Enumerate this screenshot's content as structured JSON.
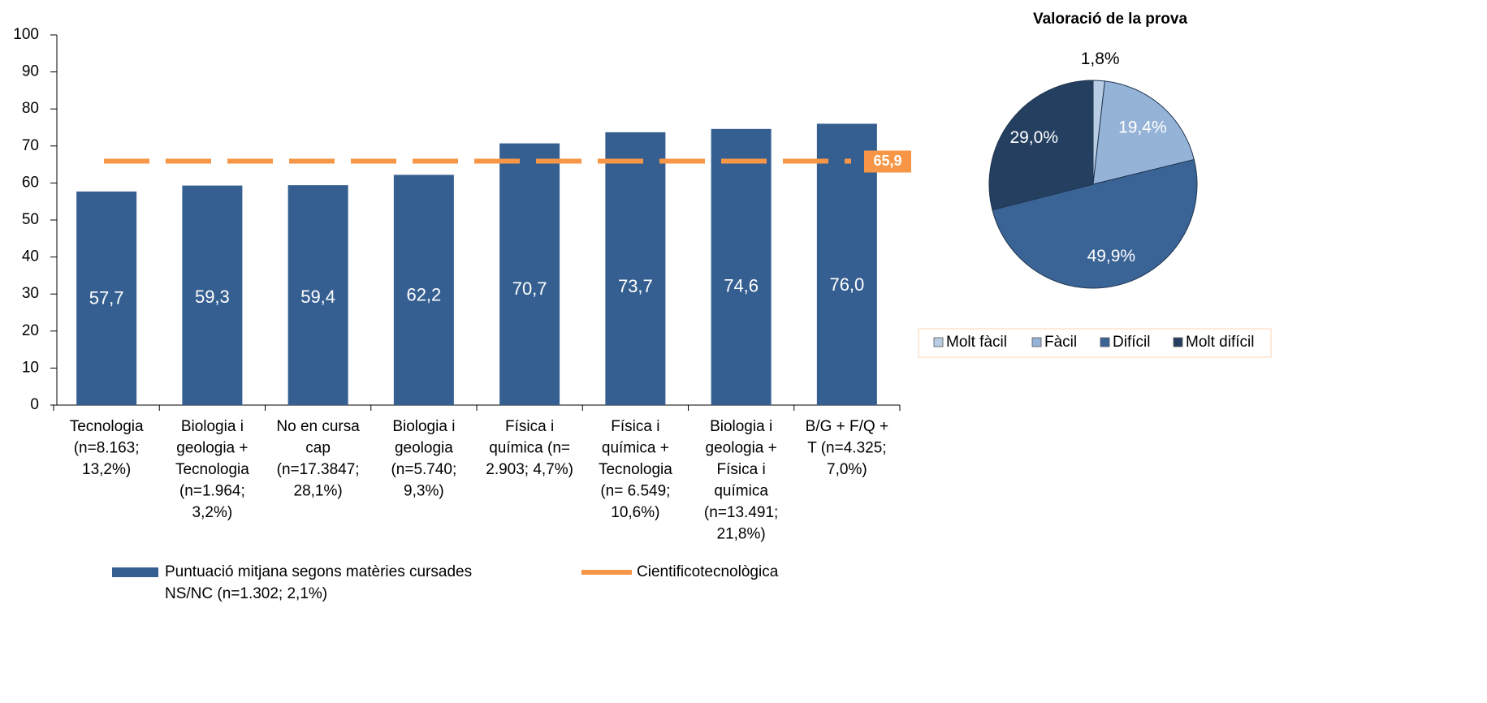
{
  "chart_data": [
    {
      "type": "bar",
      "categories": [
        [
          "Tecnologia",
          "(n=8.163;",
          "13,2%)"
        ],
        [
          "Biologia i",
          "geologia +",
          "Tecnologia",
          "(n=1.964;",
          "3,2%)"
        ],
        [
          "No en cursa",
          "cap",
          "(n=17.3847;",
          "28,1%)"
        ],
        [
          "Biologia i",
          "geologia",
          "(n=5.740;",
          "9,3%)"
        ],
        [
          "Física i",
          "química (n=",
          "2.903; 4,7%)"
        ],
        [
          "Física i",
          "química +",
          "Tecnologia",
          "(n= 6.549;",
          "10,6%)"
        ],
        [
          "Biologia i",
          "geologia +",
          "Física i",
          "química",
          "(n=13.491;",
          "21,8%)"
        ],
        [
          "B/G + F/Q +",
          "T (n=4.325;",
          "7,0%)"
        ]
      ],
      "series": [
        {
          "name": "Puntuació mitjana segons matèries cursades",
          "color": "#365f91",
          "values": [
            57.7,
            59.3,
            59.4,
            62.2,
            70.7,
            73.7,
            74.6,
            76.0
          ],
          "value_labels": [
            "57,7",
            "59,3",
            "59,4",
            "62,2",
            "70,7",
            "73,7",
            "74,6",
            "76,0"
          ]
        }
      ],
      "reference_line": {
        "name": "Cientificotecnològica",
        "value": 65.9,
        "value_label": "65,9",
        "color": "#f79646"
      },
      "legend_note": "NS/NC (n=1.302; 2,1%)",
      "ylim": [
        0,
        100
      ],
      "yticks": [
        0,
        10,
        20,
        30,
        40,
        50,
        60,
        70,
        80,
        90,
        100
      ]
    },
    {
      "type": "pie",
      "title": "Valoració de la prova",
      "categories": [
        "Molt fàcil",
        "Fàcil",
        "Difícil",
        "Molt difícil"
      ],
      "values": [
        1.8,
        19.4,
        49.9,
        29.0
      ],
      "value_labels": [
        "1,8%",
        "19,4%",
        "49,9%",
        "29,0%"
      ],
      "colors": [
        "#b9cde5",
        "#95b3d7",
        "#3a6396",
        "#243f60"
      ]
    }
  ]
}
